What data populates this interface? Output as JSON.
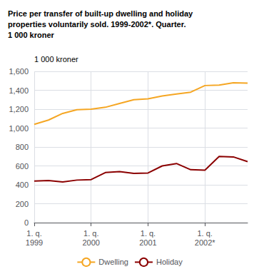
{
  "chart_data": {
    "type": "line",
    "title": "Price per transfer of built-up dwelling and holiday\nproperties voluntarily sold. 1999-2002*. Quarter.\n1 000 kroner",
    "ylabel": "1 000 kroner",
    "categories": [
      "1. q.\n1999",
      null,
      null,
      null,
      "1. q.\n2000",
      null,
      null,
      null,
      "1. q.\n2001",
      null,
      null,
      null,
      "1. q.\n2002*",
      null,
      null,
      null
    ],
    "series": [
      {
        "name": "Dwelling",
        "color": "#f5a623",
        "values": [
          1040,
          1085,
          1155,
          1195,
          1200,
          1220,
          1260,
          1300,
          1310,
          1340,
          1360,
          1380,
          1450,
          1455,
          1480,
          1475
        ]
      },
      {
        "name": "Holiday",
        "color": "#8b0000",
        "values": [
          440,
          445,
          430,
          450,
          455,
          530,
          540,
          520,
          525,
          600,
          625,
          560,
          555,
          700,
          695,
          645
        ]
      }
    ],
    "ylim": [
      0,
      1600
    ],
    "yticks": [
      0,
      200,
      400,
      600,
      800,
      1000,
      1200,
      1400,
      1600
    ],
    "grid": true,
    "legend": "bottom"
  }
}
